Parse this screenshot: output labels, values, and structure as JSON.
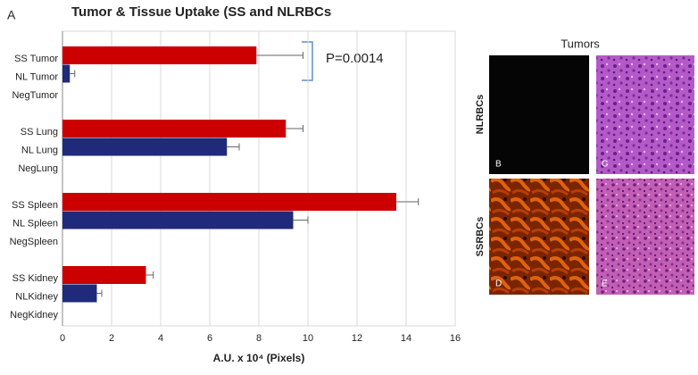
{
  "chart_data": {
    "type": "hbar",
    "panel_label": "A",
    "title": "Tumor & Tissue Uptake (SS and NLRBCs",
    "categories": [
      "SS Tumor",
      "NL Tumor",
      "NegTumor",
      "SS Lung",
      "NL Lung",
      "NegLung",
      "SS Spleen",
      "NL Spleen",
      "NegSpleen",
      "SS Kidney",
      "NLKidney",
      "NegKidney"
    ],
    "values": [
      7.9,
      0.3,
      0,
      9.1,
      6.7,
      0,
      13.6,
      9.4,
      0,
      3.4,
      1.4,
      0
    ],
    "errors": [
      1.9,
      0.2,
      null,
      0.7,
      0.5,
      null,
      0.9,
      0.6,
      null,
      0.3,
      0.2,
      null
    ],
    "colors": [
      "#cc0000",
      "#1f2a7a",
      "#1f2a7a",
      "#cc0000",
      "#1f2a7a",
      "#1f2a7a",
      "#cc0000",
      "#1f2a7a",
      "#1f2a7a",
      "#cc0000",
      "#1f2a7a",
      "#1f2a7a"
    ],
    "xlim": [
      0,
      16
    ],
    "xticks": [
      0,
      2,
      4,
      6,
      8,
      10,
      12,
      14,
      16
    ],
    "grid": true,
    "xlabel": "A.U. x 10⁴ (Pixels)",
    "annotation": "P=0.0014"
  },
  "images": {
    "title": "Tumors",
    "row_labels": [
      "NLRBCs",
      "SSRBCs"
    ],
    "panels": [
      "B",
      "C",
      "D",
      "E"
    ]
  }
}
